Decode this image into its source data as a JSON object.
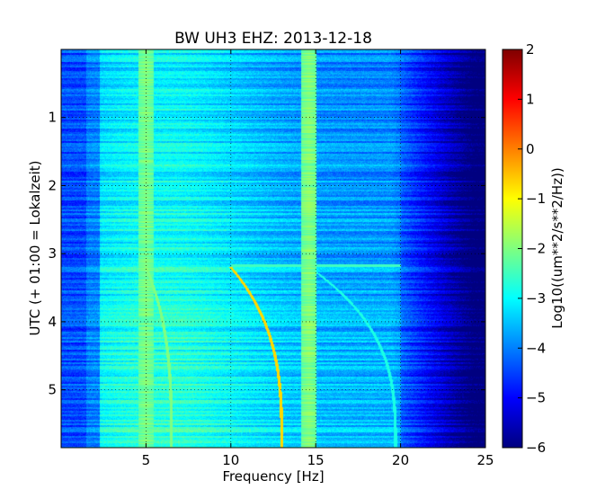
{
  "chart_data": {
    "type": "heatmap",
    "title": "BW UH3 EHZ: 2013-12-18",
    "xlabel": "Frequency [Hz]",
    "ylabel": "UTC (+ 01:00 = Lokalzeit)",
    "xlim": [
      0,
      25
    ],
    "ylim": [
      0,
      5.85
    ],
    "y_inverted": true,
    "grid": true,
    "x_ticks": [
      5,
      10,
      15,
      20,
      25
    ],
    "x_tick_labels": [
      "5",
      "10",
      "15",
      "20",
      "25"
    ],
    "y_ticks": [
      1,
      2,
      3,
      4,
      5
    ],
    "y_tick_labels": [
      "1",
      "2",
      "3",
      "4",
      "5"
    ],
    "colormap": "jet",
    "colorbar": {
      "label": "Log10((um**2/s**2/Hz))",
      "range": [
        -6,
        2
      ],
      "ticks": [
        2,
        1,
        0,
        -1,
        -2,
        -3,
        -4,
        -5,
        -6
      ],
      "tick_labels": [
        "2",
        "1",
        "0",
        "−1",
        "−2",
        "−3",
        "−4",
        "−5",
        "−6"
      ]
    },
    "background_level": -4.0,
    "persistent_lines": [
      {
        "freq_hz": 2.0,
        "level": -4.6
      },
      {
        "freq_hz": 5.0,
        "level": -2.3
      },
      {
        "freq_hz": 14.6,
        "level": -2.2
      }
    ],
    "transient_tracks": [
      {
        "start_time": 3.2,
        "end_time": 5.85,
        "start_freq": 5.0,
        "end_freq": 6.5,
        "level": -2.0
      },
      {
        "start_time": 3.2,
        "end_time": 5.85,
        "start_freq": 10.0,
        "end_freq": 13.0,
        "level": -0.7
      },
      {
        "start_time": 3.18,
        "end_time": 5.85,
        "start_freq": 14.5,
        "end_freq": 19.7,
        "level": -2.8
      }
    ],
    "event_band": {
      "time": 3.18,
      "freq_from": 10.0,
      "freq_to": 20.0,
      "level": -2.5
    }
  }
}
